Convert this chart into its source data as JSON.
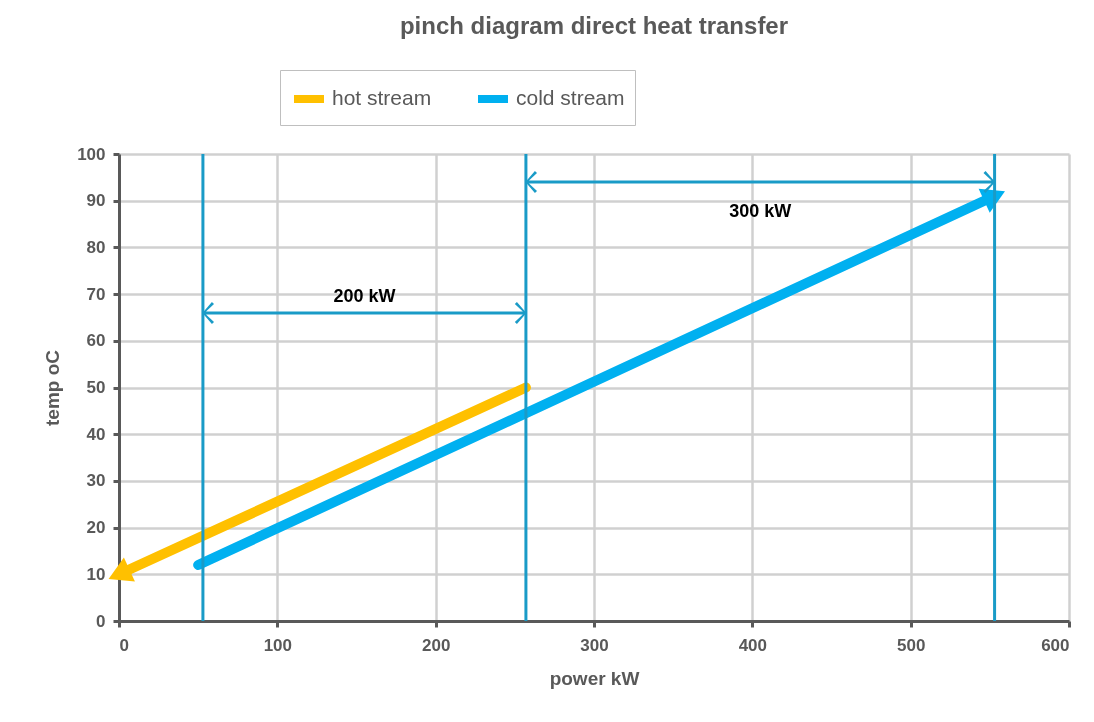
{
  "chart_data": {
    "type": "line",
    "title": "pinch diagram direct heat transfer",
    "xlabel": "power kW",
    "ylabel": "temp oC",
    "series": [
      {
        "name": "hot stream",
        "color": "#ffc000",
        "x": [
          257,
          0
        ],
        "values": [
          50,
          10
        ]
      },
      {
        "name": "cold stream",
        "color": "#00b0f0",
        "x": [
          50,
          553
        ],
        "values": [
          12,
          91
        ]
      }
    ],
    "xlim": [
      0,
      600
    ],
    "xticks": [
      0,
      100,
      200,
      300,
      400,
      500,
      600
    ],
    "ylim": [
      0,
      100
    ],
    "yticks": [
      0,
      10,
      20,
      30,
      40,
      50,
      60,
      70,
      80,
      90,
      100
    ],
    "grid": true,
    "legend": "top",
    "marker": "none",
    "line_style": "solid",
    "ref_lines": [
      {
        "axis": "x",
        "value": 53,
        "color": "#1a9bc7"
      },
      {
        "axis": "x",
        "value": 257,
        "color": "#1a9bc7"
      },
      {
        "axis": "x",
        "value": 553,
        "color": "#1a9bc7"
      }
    ],
    "annotations": [
      "200 kW",
      "300 kW"
    ]
  }
}
